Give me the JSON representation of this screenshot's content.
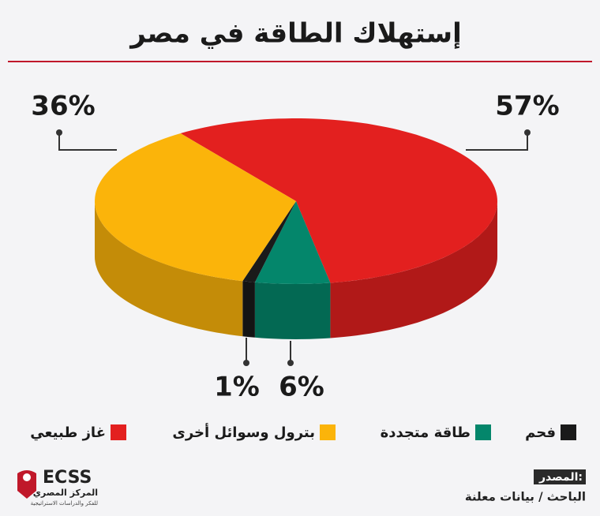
{
  "chart_data": {
    "type": "pie",
    "title": "إستهلاك الطاقة في مصر",
    "categories": [
      "غاز طبيعي",
      "طاقة متجددة",
      "فحم",
      "بترول وسوائل أخرى"
    ],
    "values": [
      57,
      6,
      1,
      36
    ],
    "value_labels": [
      "57%",
      "6%",
      "1%",
      "36%"
    ],
    "colors": [
      "#e3201f",
      "#04866b",
      "#1a1a1a",
      "#fbb40a"
    ],
    "legend": "bottom"
  },
  "footer": {
    "source_label": "المصدر:",
    "source": "الباحث / بيانات معلنة",
    "logo": {
      "name": "ECSS",
      "subtitle": "المركز المصري",
      "tagline": "للفكر والدراسات الاستراتيجية"
    }
  }
}
